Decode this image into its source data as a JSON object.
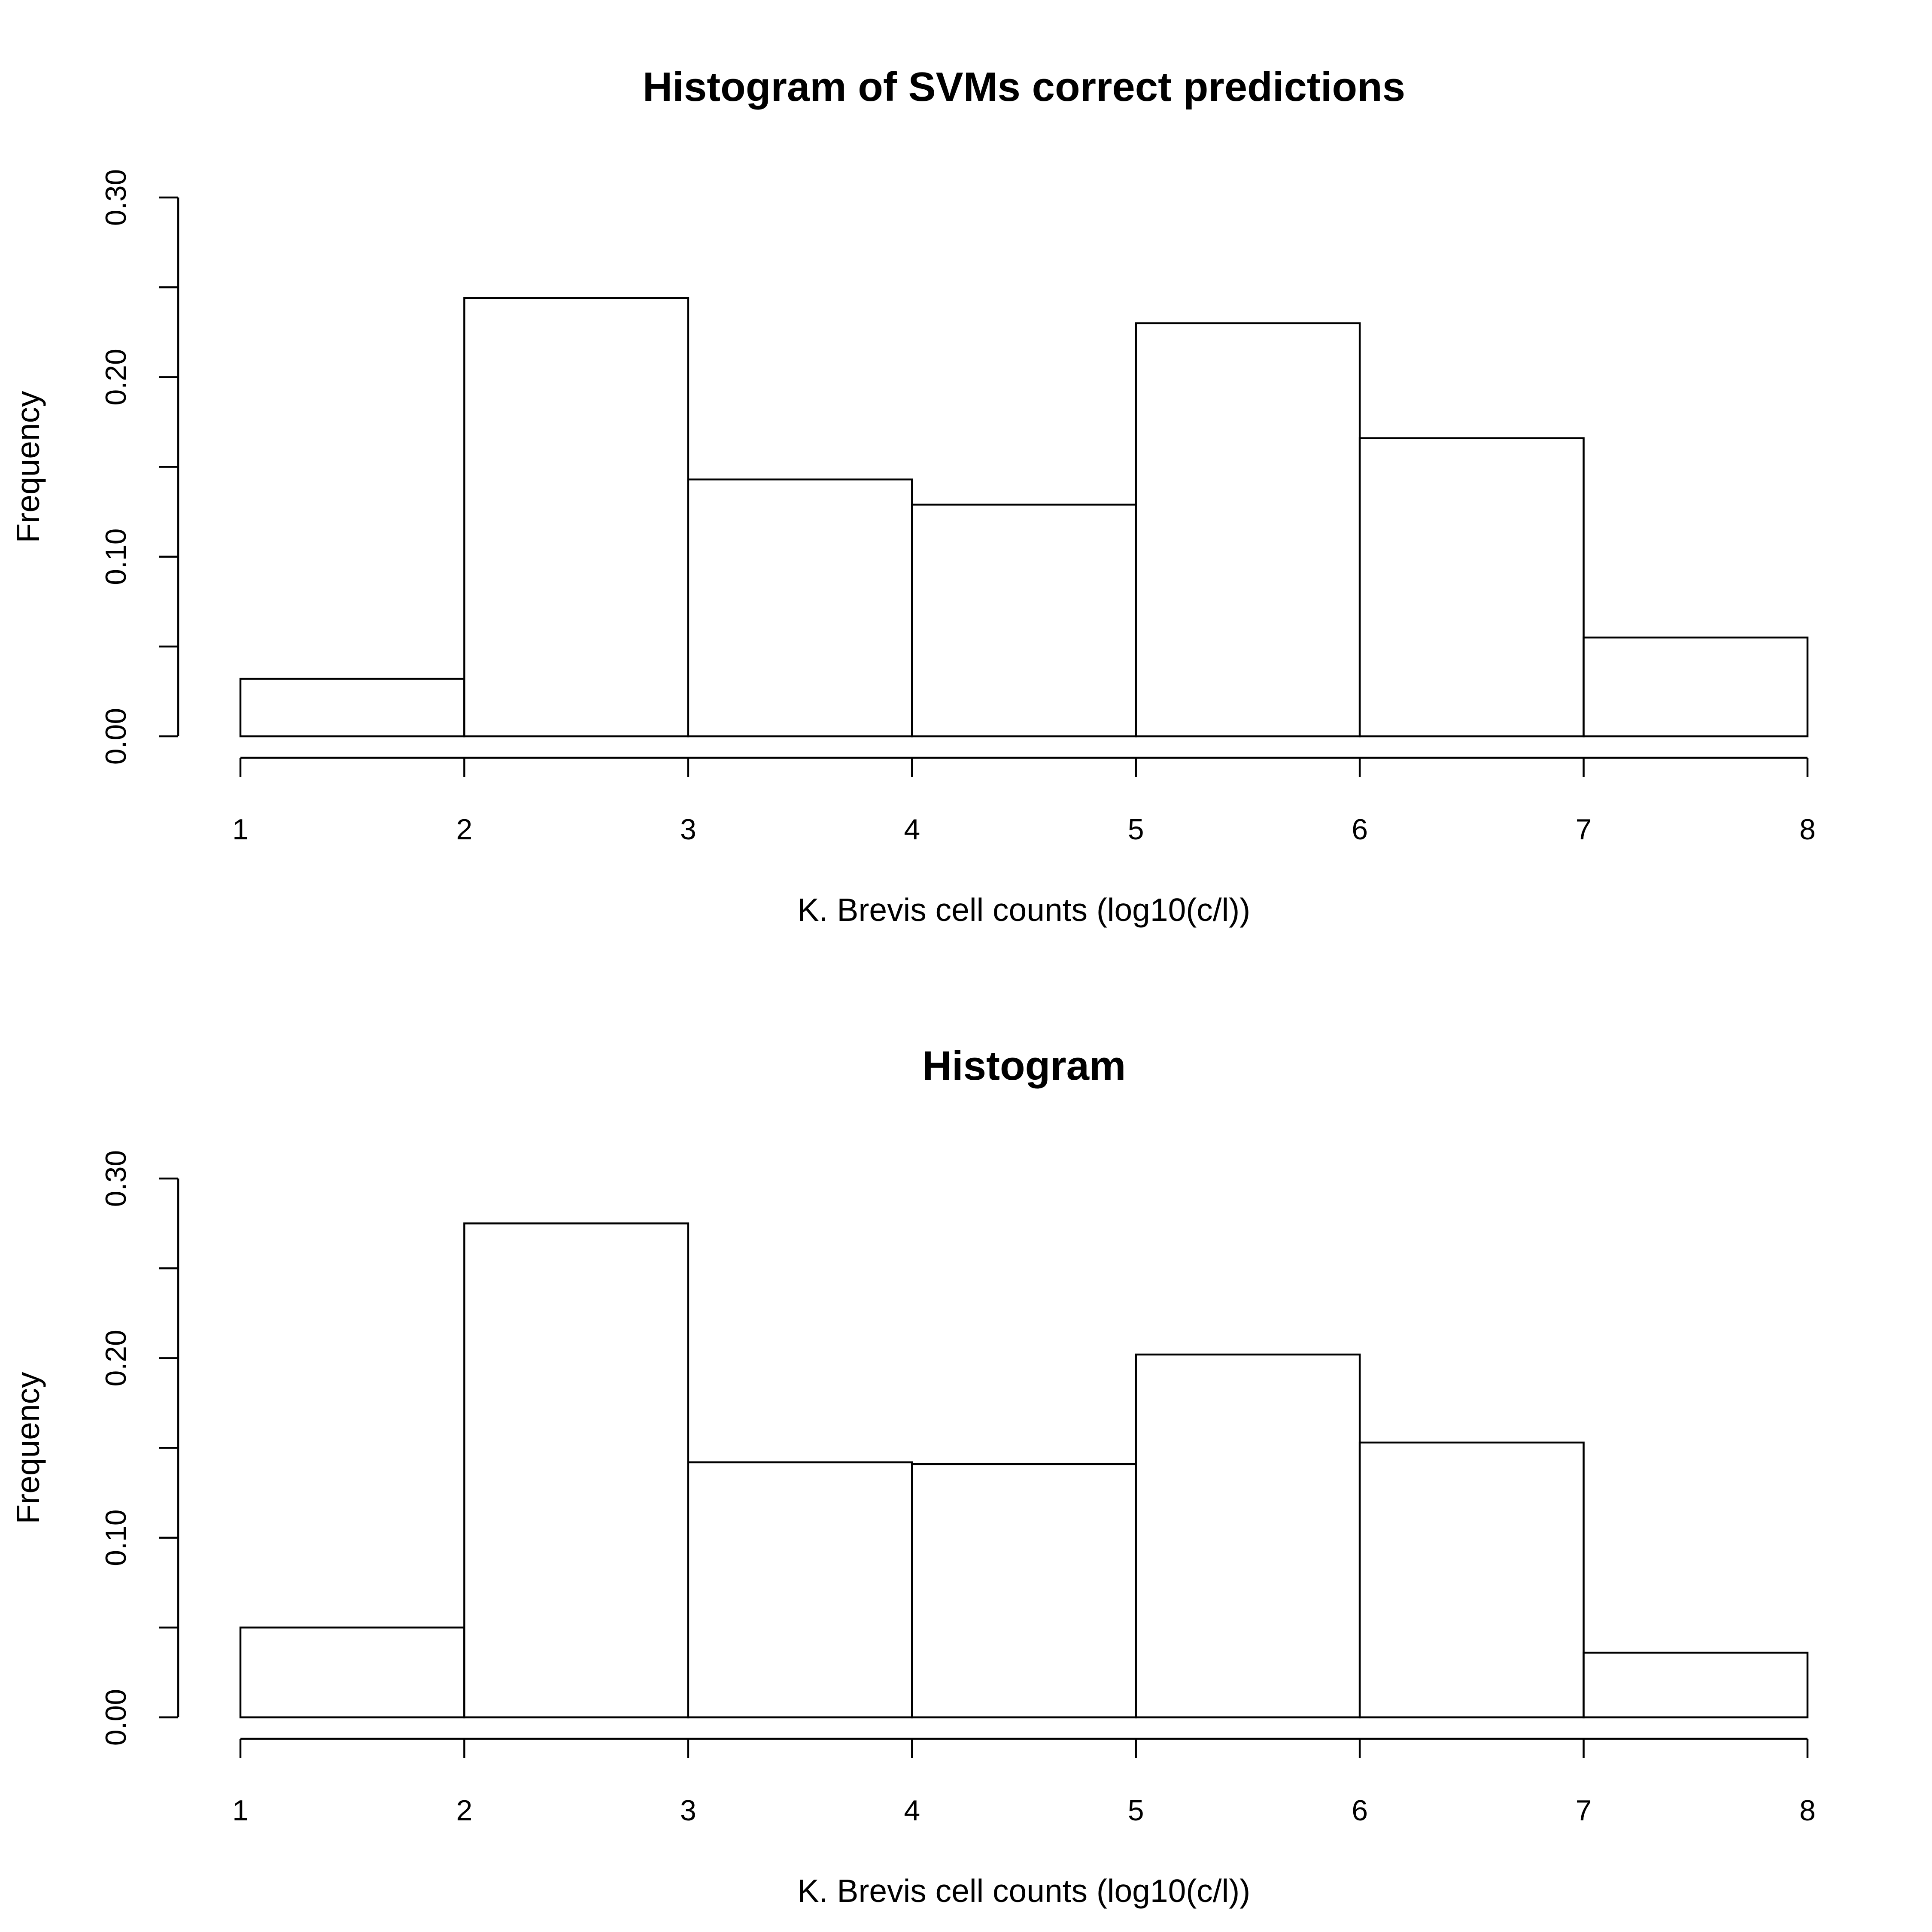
{
  "chart_data": [
    {
      "type": "bar",
      "title": "Histogram of SVMs correct predictions",
      "xlabel": "K. Brevis cell counts (log10(c/l))",
      "ylabel": "Frequency",
      "bin_edges": [
        1,
        2,
        3,
        4,
        5,
        6,
        7,
        8
      ],
      "values": [
        0.032,
        0.244,
        0.143,
        0.129,
        0.23,
        0.166,
        0.055
      ],
      "xlim": [
        1,
        8
      ],
      "ylim": [
        0,
        0.3
      ],
      "x_ticks": [
        "1",
        "2",
        "3",
        "4",
        "5",
        "6",
        "7",
        "8"
      ],
      "y_ticks_labeled": [
        "0.00",
        "0.10",
        "0.20",
        "0.30"
      ],
      "y_ticks": [
        0,
        0.05,
        0.1,
        0.15,
        0.2,
        0.25,
        0.3
      ],
      "grid": false
    },
    {
      "type": "bar",
      "title": "Histogram",
      "xlabel": "K. Brevis cell counts (log10(c/l))",
      "ylabel": "Frequency",
      "bin_edges": [
        1,
        2,
        3,
        4,
        5,
        6,
        7,
        8
      ],
      "values": [
        0.05,
        0.275,
        0.142,
        0.141,
        0.202,
        0.153,
        0.036
      ],
      "xlim": [
        1,
        8
      ],
      "ylim": [
        0,
        0.3
      ],
      "x_ticks": [
        "1",
        "2",
        "3",
        "4",
        "5",
        "6",
        "7",
        "8"
      ],
      "y_ticks_labeled": [
        "0.00",
        "0.10",
        "0.20",
        "0.30"
      ],
      "y_ticks": [
        0,
        0.05,
        0.1,
        0.15,
        0.2,
        0.25,
        0.3
      ],
      "grid": false
    }
  ]
}
